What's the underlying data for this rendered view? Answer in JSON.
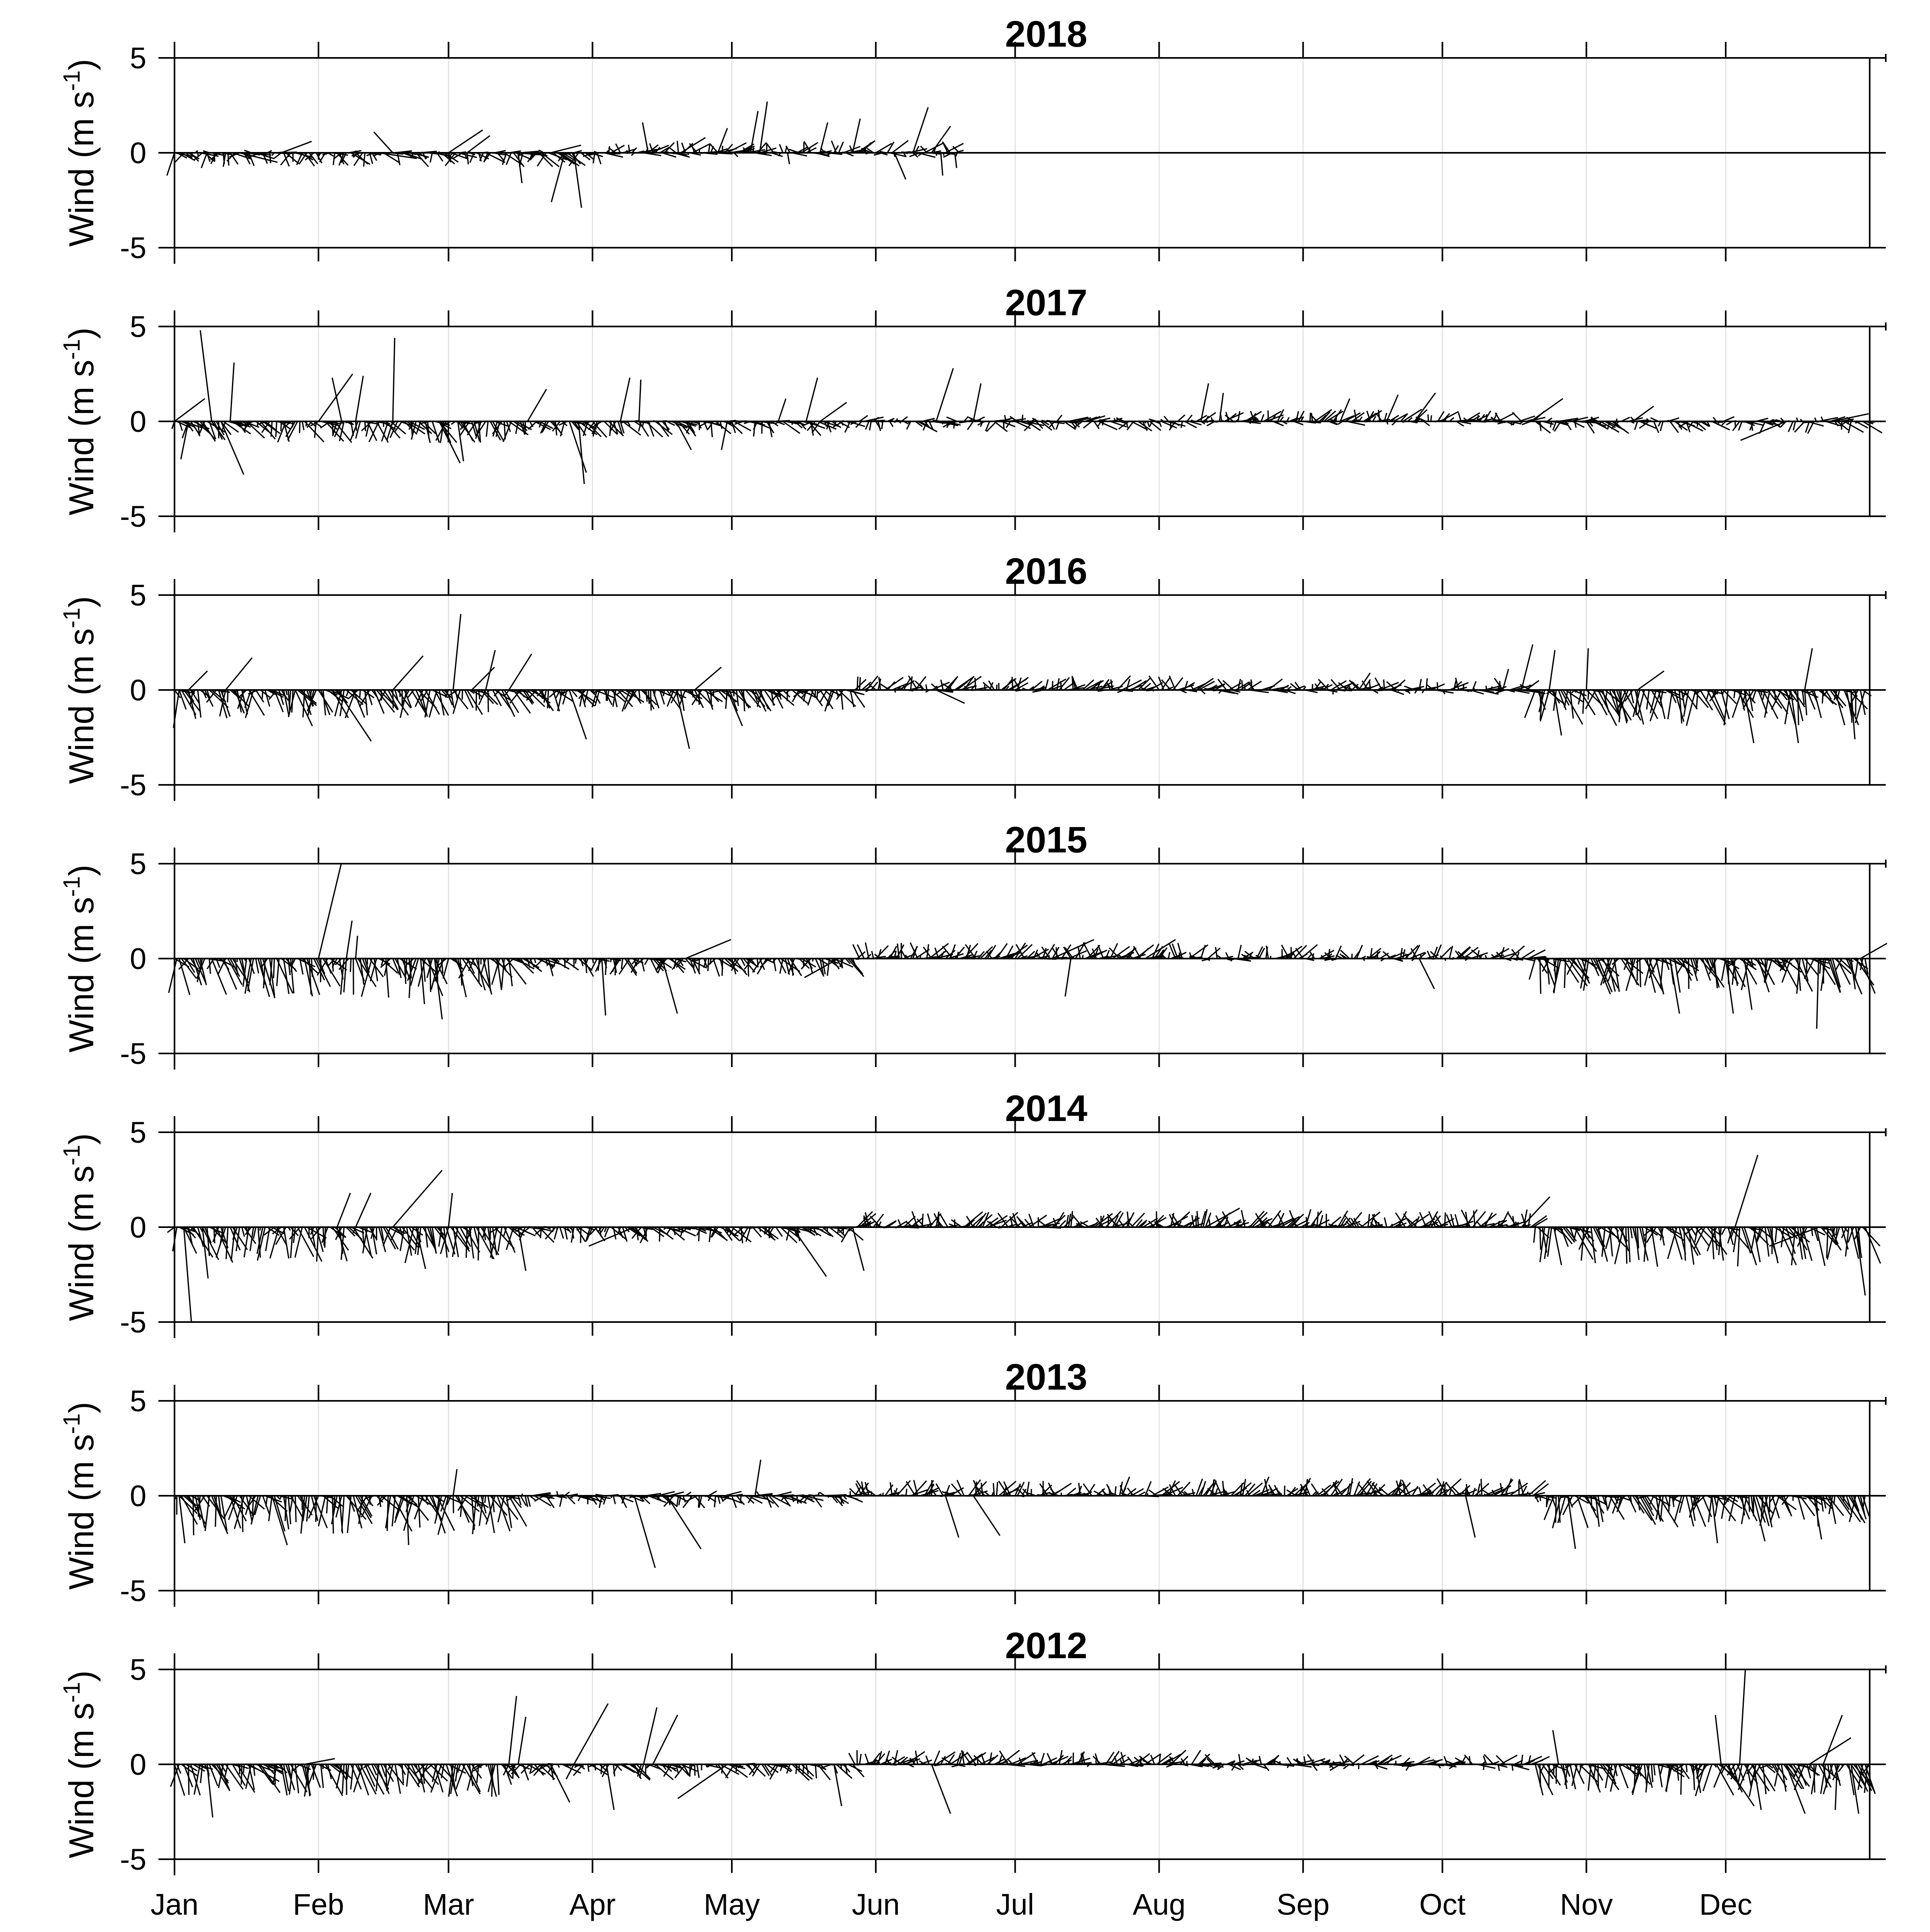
{
  "chart_data": [
    {
      "type": "stick",
      "title": "2018",
      "ylabel_main": "Wind (m s",
      "ylabel_sup": "-1",
      "ylabel_end": ")",
      "ylim": [
        -5,
        5
      ],
      "yticks": [
        -5,
        0,
        5
      ],
      "ytick_labels": [
        "-5",
        "0",
        "5"
      ],
      "months": [
        "Jan",
        "Feb",
        "Mar",
        "Apr",
        "May",
        "Jun",
        "Jul",
        "Aug",
        "Sep",
        "Oct",
        "Nov",
        "Dec"
      ],
      "grid": "vertical at month starts",
      "data_end_day": 170,
      "events": [
        {
          "day": 1,
          "u": -0.4,
          "v": -1.2
        },
        {
          "day": 8,
          "u": -0.3,
          "v": -0.8
        },
        {
          "day": 15,
          "u": 2.0,
          "v": -0.5
        },
        {
          "day": 24,
          "u": 1.6,
          "v": 0.6
        },
        {
          "day": 45,
          "u": 2.0,
          "v": -0.3
        },
        {
          "day": 48,
          "u": -1.0,
          "v": 1.1
        },
        {
          "day": 60,
          "u": 1.8,
          "v": 1.2
        },
        {
          "day": 64,
          "u": 1.2,
          "v": 0.9
        },
        {
          "day": 75,
          "u": 0.2,
          "v": -1.6
        },
        {
          "day": 82,
          "u": 1.6,
          "v": 0.4
        },
        {
          "day": 85,
          "u": -0.7,
          "v": -2.6
        },
        {
          "day": 87,
          "u": 0.4,
          "v": -2.9
        },
        {
          "day": 92,
          "u": 0.2,
          "v": -0.6
        },
        {
          "day": 103,
          "u": -0.3,
          "v": 1.6
        },
        {
          "day": 110,
          "u": 1.3,
          "v": 0.8
        },
        {
          "day": 118,
          "u": 0.5,
          "v": 1.3
        },
        {
          "day": 125,
          "u": 0.4,
          "v": 2.2
        },
        {
          "day": 127,
          "u": 0.4,
          "v": 2.7
        },
        {
          "day": 133,
          "u": 0.1,
          "v": -0.6
        },
        {
          "day": 140,
          "u": 0.4,
          "v": 1.6
        },
        {
          "day": 147,
          "u": 0.4,
          "v": 1.8
        },
        {
          "day": 156,
          "u": 0.6,
          "v": -1.4
        },
        {
          "day": 160,
          "u": 0.8,
          "v": 2.4
        },
        {
          "day": 164,
          "u": 1.0,
          "v": 1.4
        },
        {
          "day": 166,
          "u": 0.1,
          "v": -1.2
        },
        {
          "day": 169,
          "u": 0.1,
          "v": -0.8
        }
      ]
    },
    {
      "type": "stick",
      "title": "2017",
      "ylabel_main": "Wind (m s",
      "ylabel_sup": "-1",
      "ylabel_end": ")",
      "ylim": [
        -5,
        5
      ],
      "yticks": [
        -5,
        0,
        5
      ],
      "ytick_labels": [
        "-5",
        "0",
        "5"
      ],
      "months": [
        "Jan",
        "Feb",
        "Mar",
        "Apr",
        "May",
        "Jun",
        "Jul",
        "Aug",
        "Sep",
        "Oct",
        "Nov",
        "Dec"
      ],
      "grid": "vertical at month starts",
      "data_end_day": 365,
      "events": [
        {
          "day": 1,
          "u": 1.6,
          "v": 1.2
        },
        {
          "day": 4,
          "u": -0.4,
          "v": -2.0
        },
        {
          "day": 9,
          "u": -0.6,
          "v": 4.8
        },
        {
          "day": 11,
          "u": 1.2,
          "v": -2.8
        },
        {
          "day": 13,
          "u": 0.2,
          "v": 3.1
        },
        {
          "day": 32,
          "u": 1.8,
          "v": 2.5
        },
        {
          "day": 37,
          "u": -0.5,
          "v": 2.3
        },
        {
          "day": 40,
          "u": 0.4,
          "v": 2.4
        },
        {
          "day": 48,
          "u": 0.1,
          "v": 4.4
        },
        {
          "day": 58,
          "u": 1.1,
          "v": -2.2
        },
        {
          "day": 62,
          "u": 0.3,
          "v": -2.1
        },
        {
          "day": 77,
          "u": 1.0,
          "v": 1.7
        },
        {
          "day": 86,
          "u": 0.9,
          "v": -2.7
        },
        {
          "day": 88,
          "u": 0.3,
          "v": -3.3
        },
        {
          "day": 97,
          "u": 0.5,
          "v": 2.3
        },
        {
          "day": 101,
          "u": 0.1,
          "v": 2.2
        },
        {
          "day": 109,
          "u": 0.8,
          "v": -1.5
        },
        {
          "day": 120,
          "u": -0.3,
          "v": -1.5
        },
        {
          "day": 131,
          "u": 0.4,
          "v": 1.2
        },
        {
          "day": 137,
          "u": 0.6,
          "v": 2.3
        },
        {
          "day": 140,
          "u": 1.4,
          "v": 1.0
        },
        {
          "day": 165,
          "u": 0.9,
          "v": 2.8
        },
        {
          "day": 173,
          "u": 0.4,
          "v": 2.0
        },
        {
          "day": 222,
          "u": 0.4,
          "v": 2.0
        },
        {
          "day": 226,
          "u": 0.2,
          "v": 1.5
        },
        {
          "day": 252,
          "u": 0.5,
          "v": 1.2
        },
        {
          "day": 262,
          "u": 0.6,
          "v": 1.4
        },
        {
          "day": 268,
          "u": 1.1,
          "v": 1.5
        },
        {
          "day": 293,
          "u": 1.7,
          "v": 1.2
        },
        {
          "day": 315,
          "u": 1.1,
          "v": 0.8
        },
        {
          "day": 348,
          "u": -2.4,
          "v": -1.0
        },
        {
          "day": 358,
          "u": 1.9,
          "v": 0.4
        }
      ]
    },
    {
      "type": "stick",
      "title": "2016",
      "ylabel_main": "Wind (m s",
      "ylabel_sup": "-1",
      "ylabel_end": ")",
      "ylim": [
        -5,
        5
      ],
      "yticks": [
        -5,
        0,
        5
      ],
      "ytick_labels": [
        "-5",
        "0",
        "5"
      ],
      "months": [
        "Jan",
        "Feb",
        "Mar",
        "Apr",
        "May",
        "Jun",
        "Jul",
        "Aug",
        "Sep",
        "Oct",
        "Nov",
        "Dec"
      ],
      "grid": "vertical at month starts",
      "data_end_day": 365,
      "events": [
        {
          "day": 2,
          "u": -0.3,
          "v": -2.0
        },
        {
          "day": 4,
          "u": 1.0,
          "v": 1.0
        },
        {
          "day": 12,
          "u": 1.4,
          "v": 1.7
        },
        {
          "day": 27,
          "u": 0.9,
          "v": -1.9
        },
        {
          "day": 36,
          "u": 1.8,
          "v": -2.7
        },
        {
          "day": 48,
          "u": 1.6,
          "v": 1.8
        },
        {
          "day": 61,
          "u": 0.4,
          "v": 4.0
        },
        {
          "day": 65,
          "u": 1.2,
          "v": 1.2
        },
        {
          "day": 68,
          "u": 0.5,
          "v": 2.1
        },
        {
          "day": 73,
          "u": 1.2,
          "v": 1.9
        },
        {
          "day": 86,
          "u": 0.9,
          "v": -2.6
        },
        {
          "day": 109,
          "u": 0.7,
          "v": -3.1
        },
        {
          "day": 113,
          "u": 1.4,
          "v": 1.2
        },
        {
          "day": 120,
          "u": 0.8,
          "v": -1.9
        },
        {
          "day": 165,
          "u": 1.5,
          "v": -0.7
        },
        {
          "day": 256,
          "u": 0.6,
          "v": 0.9
        },
        {
          "day": 287,
          "u": 0.3,
          "v": 1.1
        },
        {
          "day": 291,
          "u": 0.6,
          "v": 2.4
        },
        {
          "day": 297,
          "u": 0.3,
          "v": 2.1
        },
        {
          "day": 298,
          "u": 0.4,
          "v": -2.4
        },
        {
          "day": 305,
          "u": 0.1,
          "v": 2.2
        },
        {
          "day": 316,
          "u": 1.4,
          "v": 1.0
        },
        {
          "day": 339,
          "u": 0.5,
          "v": -2.8
        },
        {
          "day": 349,
          "u": 0.4,
          "v": -2.8
        },
        {
          "day": 352,
          "u": 0.4,
          "v": 2.2
        },
        {
          "day": 362,
          "u": 0.2,
          "v": -2.6
        }
      ]
    },
    {
      "type": "stick",
      "title": "2015",
      "ylabel_main": "Wind (m s",
      "ylabel_sup": "-1",
      "ylabel_end": ")",
      "ylim": [
        -5,
        5
      ],
      "yticks": [
        -5,
        0,
        5
      ],
      "ytick_labels": [
        "-5",
        "0",
        "5"
      ],
      "months": [
        "Jan",
        "Feb",
        "Mar",
        "Apr",
        "May",
        "Jun",
        "Jul",
        "Aug",
        "Sep",
        "Oct",
        "Nov",
        "Dec"
      ],
      "grid": "vertical at month starts",
      "data_end_day": 365,
      "events": [
        {
          "day": 32,
          "u": 1.2,
          "v": 5.0
        },
        {
          "day": 38,
          "u": 0.3,
          "v": 2.0
        },
        {
          "day": 40,
          "u": 0.1,
          "v": 1.2
        },
        {
          "day": 54,
          "u": 0.2,
          "v": -2.4
        },
        {
          "day": 57,
          "u": 0.4,
          "v": -3.2
        },
        {
          "day": 93,
          "u": 0.2,
          "v": -3.0
        },
        {
          "day": 106,
          "u": 0.8,
          "v": -2.9
        },
        {
          "day": 111,
          "u": 2.4,
          "v": 1.0
        },
        {
          "day": 144,
          "u": -1.8,
          "v": -1.0
        },
        {
          "day": 190,
          "u": 2.2,
          "v": 1.0
        },
        {
          "day": 194,
          "u": -0.3,
          "v": -2.0
        },
        {
          "day": 210,
          "u": 1.6,
          "v": 1.0
        },
        {
          "day": 269,
          "u": 0.8,
          "v": -1.6
        },
        {
          "day": 323,
          "u": 0.5,
          "v": -2.9
        },
        {
          "day": 335,
          "u": 0.4,
          "v": -2.9
        },
        {
          "day": 339,
          "u": 0.4,
          "v": -2.7
        },
        {
          "day": 355,
          "u": -0.1,
          "v": -3.7
        },
        {
          "day": 364,
          "u": 1.4,
          "v": 0.8
        }
      ]
    },
    {
      "type": "stick",
      "title": "2014",
      "ylabel_main": "Wind (m s",
      "ylabel_sup": "-1",
      "ylabel_end": ")",
      "ylim": [
        -5,
        5
      ],
      "yticks": [
        -5,
        0,
        5
      ],
      "ytick_labels": [
        "-5",
        "0",
        "5"
      ],
      "months": [
        "Jan",
        "Feb",
        "Mar",
        "Apr",
        "May",
        "Jun",
        "Jul",
        "Aug",
        "Sep",
        "Oct",
        "Nov",
        "Dec"
      ],
      "grid": "vertical at month starts",
      "data_end_day": 365,
      "events": [
        {
          "day": 3,
          "u": 0.4,
          "v": -5.0
        },
        {
          "day": 7,
          "u": 0.3,
          "v": -2.7
        },
        {
          "day": 36,
          "u": 0.7,
          "v": 1.8
        },
        {
          "day": 40,
          "u": 0.8,
          "v": 1.8
        },
        {
          "day": 48,
          "u": 2.6,
          "v": 3.0
        },
        {
          "day": 53,
          "u": 0.5,
          "v": -2.2
        },
        {
          "day": 60,
          "u": 0.2,
          "v": 1.8
        },
        {
          "day": 75,
          "u": 0.4,
          "v": -2.3
        },
        {
          "day": 100,
          "u": -2.4,
          "v": -1.0
        },
        {
          "day": 134,
          "u": 1.8,
          "v": -2.6
        },
        {
          "day": 147,
          "u": 0.6,
          "v": -2.3
        },
        {
          "day": 223,
          "u": 1.8,
          "v": 1.0
        },
        {
          "day": 291,
          "u": 1.5,
          "v": 1.6
        },
        {
          "day": 298,
          "u": 0.4,
          "v": -2.0
        },
        {
          "day": 337,
          "u": 1.2,
          "v": 3.8
        },
        {
          "day": 355,
          "u": -2.6,
          "v": -1.0
        },
        {
          "day": 363,
          "u": 0.5,
          "v": -3.6
        }
      ]
    },
    {
      "type": "stick",
      "title": "2013",
      "ylabel_main": "Wind (m s",
      "ylabel_sup": "-1",
      "ylabel_end": ")",
      "ylim": [
        -5,
        5
      ],
      "yticks": [
        -5,
        0,
        5
      ],
      "ytick_labels": [
        "-5",
        "0",
        "5"
      ],
      "months": [
        "Jan",
        "Feb",
        "Mar",
        "Apr",
        "May",
        "Jun",
        "Jul",
        "Aug",
        "Sep",
        "Oct",
        "Nov",
        "Dec"
      ],
      "grid": "vertical at month starts",
      "data_end_day": 365,
      "events": [
        {
          "day": 2,
          "u": 0.3,
          "v": -2.5
        },
        {
          "day": 22,
          "u": 0.8,
          "v": -2.6
        },
        {
          "day": 51,
          "u": 0.1,
          "v": -2.6
        },
        {
          "day": 61,
          "u": 0.2,
          "v": 1.4
        },
        {
          "day": 100,
          "u": 1.1,
          "v": -3.8
        },
        {
          "day": 107,
          "u": 1.8,
          "v": -2.8
        },
        {
          "day": 126,
          "u": 0.3,
          "v": 1.9
        },
        {
          "day": 167,
          "u": 0.7,
          "v": -2.2
        },
        {
          "day": 173,
          "u": 1.4,
          "v": -2.1
        },
        {
          "day": 205,
          "u": 0.4,
          "v": 1.0
        },
        {
          "day": 235,
          "u": 0.4,
          "v": 1.0
        },
        {
          "day": 279,
          "u": 0.5,
          "v": -2.2
        },
        {
          "day": 301,
          "u": 0.4,
          "v": -2.8
        },
        {
          "day": 332,
          "u": 0.3,
          "v": -2.5
        },
        {
          "day": 341,
          "u": 0.6,
          "v": -2.4
        },
        {
          "day": 354,
          "u": 0.4,
          "v": -2.3
        }
      ]
    },
    {
      "type": "stick",
      "title": "2012",
      "ylabel_main": "Wind (m s",
      "ylabel_sup": "-1",
      "ylabel_end": ")",
      "ylim": [
        -5,
        5
      ],
      "yticks": [
        -5,
        0,
        5
      ],
      "ytick_labels": [
        "-5",
        "0",
        "5"
      ],
      "months": [
        "Jan",
        "Feb",
        "Mar",
        "Apr",
        "May",
        "Jun",
        "Jul",
        "Aug",
        "Sep",
        "Oct",
        "Nov",
        "Dec"
      ],
      "grid": "vertical at month starts",
      "data_end_day": 366,
      "events": [
        {
          "day": 8,
          "u": 0.3,
          "v": -2.8
        },
        {
          "day": 17,
          "u": 1.6,
          "v": -0.9
        },
        {
          "day": 29,
          "u": 1.6,
          "v": 0.3
        },
        {
          "day": 73,
          "u": 0.4,
          "v": 3.6
        },
        {
          "day": 75,
          "u": 0.4,
          "v": 2.5
        },
        {
          "day": 82,
          "u": 1.0,
          "v": -2.0
        },
        {
          "day": 87,
          "u": 1.8,
          "v": 3.2
        },
        {
          "day": 94,
          "u": 0.4,
          "v": -2.4
        },
        {
          "day": 102,
          "u": 0.7,
          "v": 3.0
        },
        {
          "day": 104,
          "u": 1.3,
          "v": 2.6
        },
        {
          "day": 120,
          "u": -2.6,
          "v": -1.8
        },
        {
          "day": 143,
          "u": 0.4,
          "v": -2.2
        },
        {
          "day": 164,
          "u": 1.0,
          "v": -2.6
        },
        {
          "day": 299,
          "u": -0.3,
          "v": 1.8
        },
        {
          "day": 334,
          "u": -0.3,
          "v": 2.6
        },
        {
          "day": 335,
          "u": 1.5,
          "v": -2.2
        },
        {
          "day": 338,
          "u": 0.3,
          "v": 5.0
        },
        {
          "day": 341,
          "u": 0.4,
          "v": -2.4
        },
        {
          "day": 348,
          "u": 1.0,
          "v": -2.6
        },
        {
          "day": 353,
          "u": 2.2,
          "v": 1.4
        },
        {
          "day": 356,
          "u": 1.0,
          "v": 2.6
        },
        {
          "day": 359,
          "u": -0.1,
          "v": -2.4
        },
        {
          "day": 362,
          "u": 0.4,
          "v": -2.6
        }
      ]
    }
  ]
}
